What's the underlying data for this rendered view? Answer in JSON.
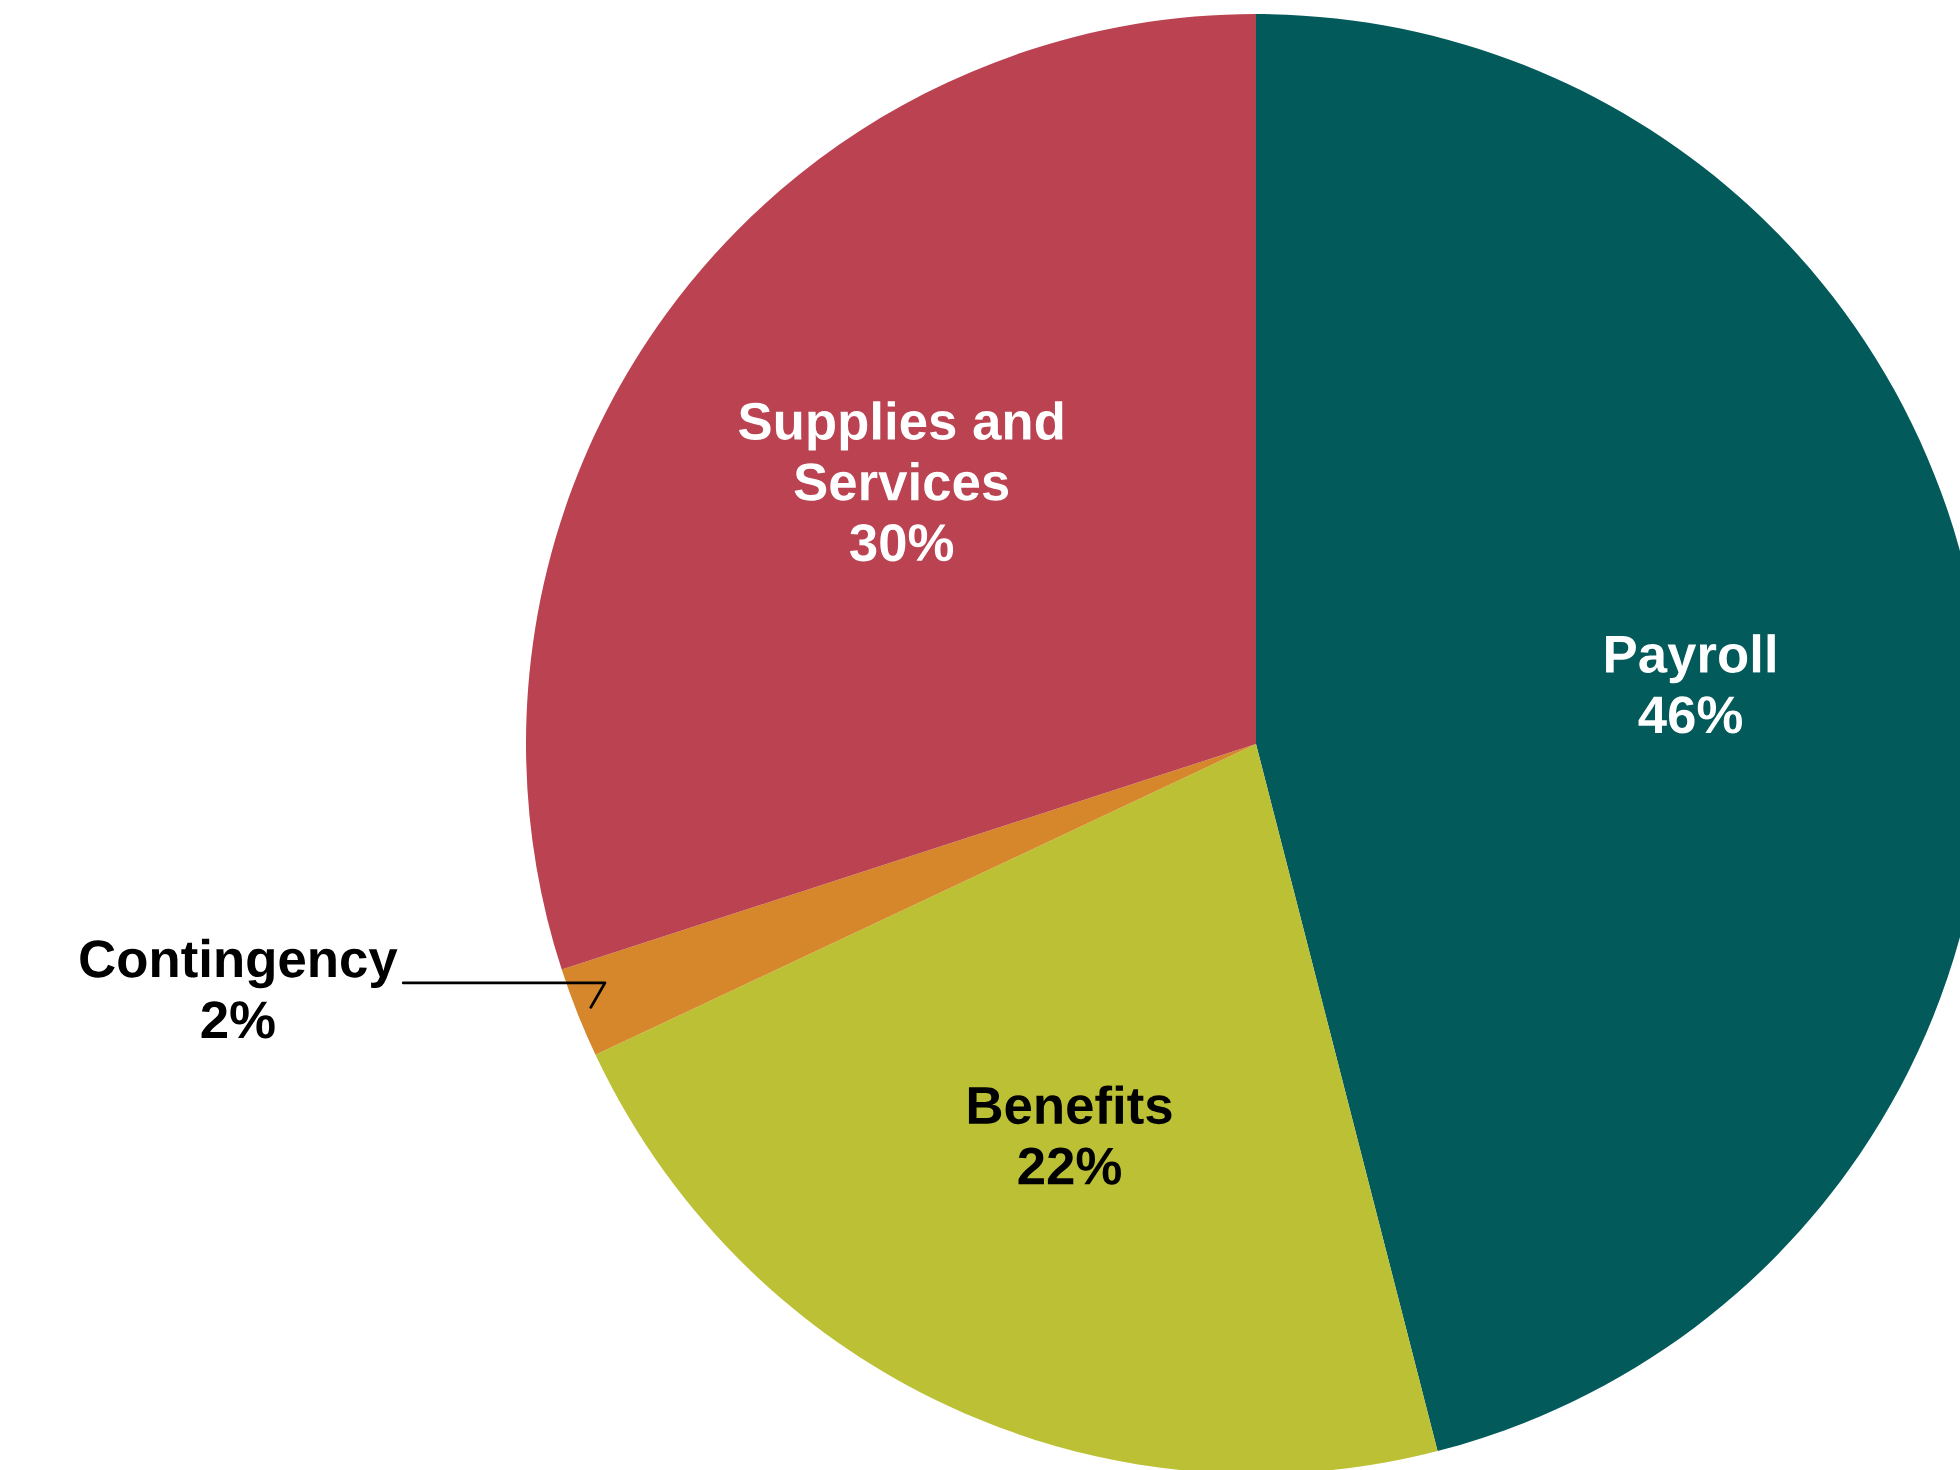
{
  "chart_data": {
    "type": "pie",
    "categories": [
      "Payroll",
      "Benefits",
      "Contingency",
      "Supplies and\nServices"
    ],
    "values": [
      46,
      22,
      2,
      30
    ],
    "value_labels": [
      "46%",
      "22%",
      "2%",
      "30%"
    ],
    "colors": [
      "#025a5b",
      "#bcc035",
      "#d6862b",
      "#bb4251"
    ]
  }
}
